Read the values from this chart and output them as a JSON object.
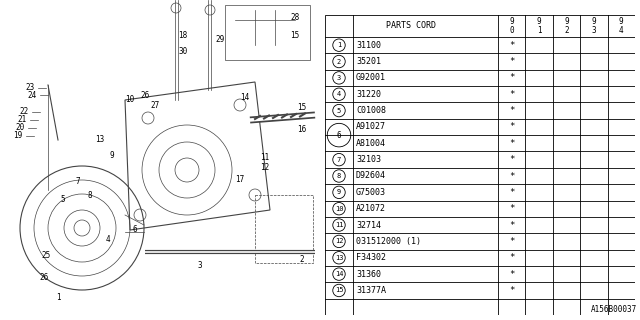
{
  "diagram_code": "A156B00037",
  "parts_header": "PARTS CORD",
  "year_cols": [
    "9\n0",
    "9\n1",
    "9\n2",
    "9\n3",
    "9\n4"
  ],
  "parts": [
    {
      "num": "1",
      "circle": true,
      "code": "31100",
      "marks": [
        "*",
        "",
        "",
        "",
        ""
      ]
    },
    {
      "num": "2",
      "circle": true,
      "code": "35201",
      "marks": [
        "*",
        "",
        "",
        "",
        ""
      ]
    },
    {
      "num": "3",
      "circle": true,
      "code": "G92001",
      "marks": [
        "*",
        "",
        "",
        "",
        ""
      ]
    },
    {
      "num": "4",
      "circle": true,
      "code": "31220",
      "marks": [
        "*",
        "",
        "",
        "",
        ""
      ]
    },
    {
      "num": "5",
      "circle": true,
      "code": "C01008",
      "marks": [
        "*",
        "",
        "",
        "",
        ""
      ]
    },
    {
      "num": "6",
      "circle": true,
      "code": "A91027",
      "marks": [
        "*",
        "",
        "",
        "",
        ""
      ],
      "double": true,
      "code2": "A81004",
      "marks2": [
        "*",
        "",
        "",
        "",
        ""
      ]
    },
    {
      "num": "7",
      "circle": true,
      "code": "32103",
      "marks": [
        "*",
        "",
        "",
        "",
        ""
      ]
    },
    {
      "num": "8",
      "circle": true,
      "code": "D92604",
      "marks": [
        "*",
        "",
        "",
        "",
        ""
      ]
    },
    {
      "num": "9",
      "circle": true,
      "code": "G75003",
      "marks": [
        "*",
        "",
        "",
        "",
        ""
      ]
    },
    {
      "num": "10",
      "circle": true,
      "code": "A21072",
      "marks": [
        "*",
        "",
        "",
        "",
        ""
      ]
    },
    {
      "num": "11",
      "circle": true,
      "code": "32714",
      "marks": [
        "*",
        "",
        "",
        "",
        ""
      ]
    },
    {
      "num": "12",
      "circle": true,
      "code": "031512000 (1)",
      "marks": [
        "*",
        "",
        "",
        "",
        ""
      ]
    },
    {
      "num": "13",
      "circle": true,
      "code": "F34302",
      "marks": [
        "*",
        "",
        "",
        "",
        ""
      ]
    },
    {
      "num": "14",
      "circle": true,
      "code": "31360",
      "marks": [
        "*",
        "",
        "",
        "",
        ""
      ]
    },
    {
      "num": "15",
      "circle": true,
      "code": "31377A",
      "marks": [
        "*",
        "",
        "",
        "",
        ""
      ]
    }
  ],
  "bg_color": "#ffffff"
}
